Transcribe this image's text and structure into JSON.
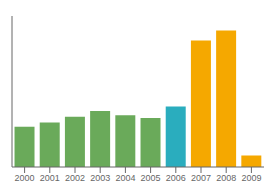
{
  "chart_data": {
    "type": "bar",
    "categories": [
      "2000",
      "2001",
      "2002",
      "2003",
      "2004",
      "2005",
      "2006",
      "2007",
      "2008",
      "2009"
    ],
    "values": [
      28,
      31,
      35,
      39,
      36,
      34,
      42,
      88,
      95,
      8
    ],
    "colors": [
      "#6aaa5a",
      "#6aaa5a",
      "#6aaa5a",
      "#6aaa5a",
      "#6aaa5a",
      "#6aaa5a",
      "#2aadbe",
      "#f5a800",
      "#f5a800",
      "#f5a800"
    ],
    "ylim": [
      0,
      105
    ],
    "grid": false,
    "tick_labels": "x"
  }
}
